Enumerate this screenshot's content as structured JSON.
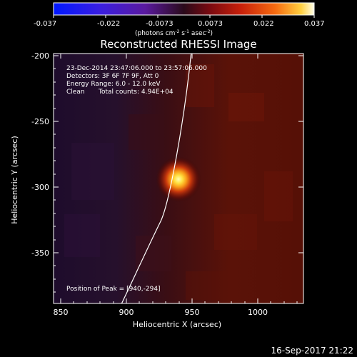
{
  "colorbar": {
    "tick_labels": [
      "-0.037",
      "-0.022",
      "-0.0073",
      "0.0073",
      "0.022",
      "0.037"
    ],
    "units_main": "(photons cm",
    "units_sup1": "-2",
    "units_mid1": " s",
    "units_sup2": "-1",
    "units_mid2": " asec",
    "units_sup3": "-2",
    "units_end": ")"
  },
  "title": "Reconstructed RHESSI Image",
  "annotations": {
    "time_range": "23-Dec-2014 23:47:06.000 to 23:57:06.000",
    "detectors": "Detectors: 3F 6F 7F 9F, Att 0",
    "energy": "Energy Range: 6.0 - 12.0 keV",
    "clean_label": "Clean",
    "total_counts": "Total counts: 4.94E+04",
    "peak": "Position of Peak = [940,-294]"
  },
  "axes": {
    "xlabel": "Heliocentric X (arcsec)",
    "ylabel": "Heliocentric Y (arcsec)",
    "xticks": [
      "850",
      "900",
      "950",
      "1000"
    ],
    "yticks": [
      "-200",
      "-250",
      "-300",
      "-350"
    ]
  },
  "timestamp": "16-Sep-2017 21:22",
  "colors": {
    "limb": "#ffffff",
    "background": "#000000"
  }
}
